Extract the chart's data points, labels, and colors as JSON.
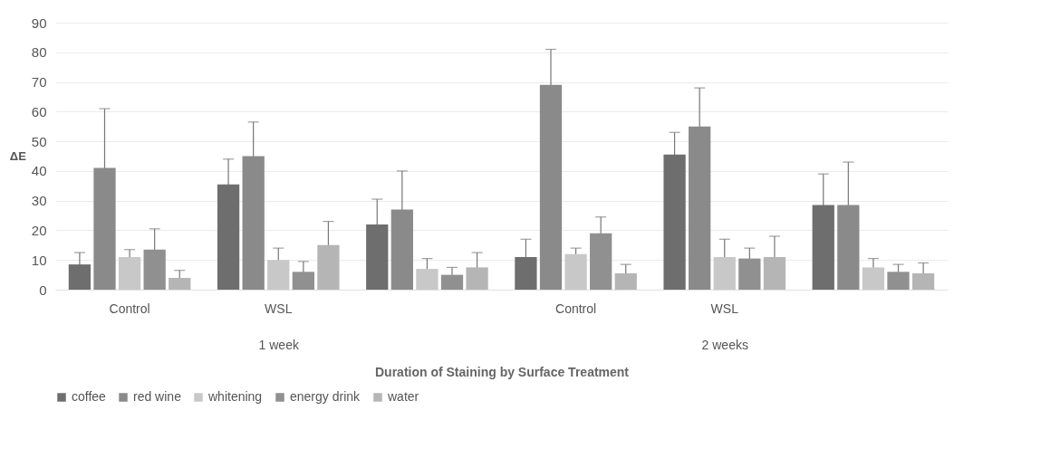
{
  "chart_data": {
    "type": "bar",
    "xlabel": "Duration of Staining by Surface Treatment",
    "ylabel": "ΔE",
    "categories": [
      "Control",
      "WSL",
      null,
      "Control",
      "WSL",
      null
    ],
    "annotations": [
      "1 week",
      "2 weeks"
    ],
    "series": [
      {
        "name": "coffee",
        "color": "#6e6e6e",
        "values": [
          8.5,
          35.5,
          22,
          11,
          45.5,
          28.5
        ],
        "errors": [
          4,
          8.5,
          8.5,
          6,
          7.5,
          10.5
        ]
      },
      {
        "name": "red wine",
        "color": "#8a8a8a",
        "values": [
          41,
          45,
          27,
          69,
          55,
          28.5
        ],
        "errors": [
          20,
          11.5,
          13,
          12,
          13,
          14.5
        ]
      },
      {
        "name": "whitening",
        "color": "#c8c8c8",
        "values": [
          11,
          10,
          7,
          12,
          11,
          7.5
        ],
        "errors": [
          2.5,
          4,
          3.5,
          2,
          6,
          3
        ]
      },
      {
        "name": "energy drink",
        "color": "#909090",
        "values": [
          13.5,
          6,
          5,
          19,
          10.5,
          6
        ],
        "errors": [
          7,
          3.5,
          2.5,
          5.5,
          3.5,
          2.5
        ]
      },
      {
        "name": "water",
        "color": "#b5b5b5",
        "values": [
          4,
          15,
          7.5,
          5.5,
          11,
          5.5
        ],
        "errors": [
          2.5,
          8,
          5,
          3,
          7,
          3.5
        ]
      }
    ],
    "ylim": [
      0,
      90
    ],
    "yticks": [
      0,
      10,
      20,
      30,
      40,
      50,
      60,
      70,
      80,
      90
    ],
    "grid": "y",
    "legend": "bottom"
  }
}
